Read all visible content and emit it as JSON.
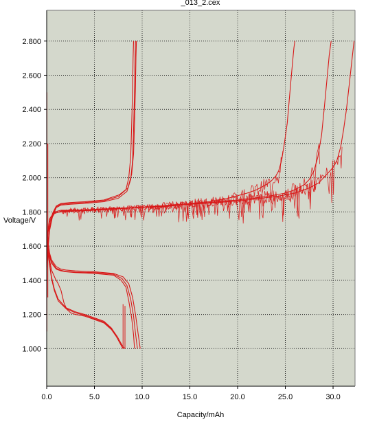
{
  "chart_data": {
    "type": "line",
    "title": "_013_2.cex",
    "xlabel": "Capacity/mAh",
    "ylabel": "Voltage/V",
    "xlim": [
      0,
      32.3
    ],
    "ylim": [
      0.78,
      2.98
    ],
    "xticks": [
      "0.0",
      "5.0",
      "10.0",
      "15.0",
      "20.0",
      "25.0",
      "30.0"
    ],
    "yticks": [
      "1.000",
      "1.200",
      "1.400",
      "1.600",
      "1.800",
      "2.000",
      "2.200",
      "2.400",
      "2.600",
      "2.800"
    ],
    "grid": true,
    "background": "#d4d8cc",
    "line_color": "#d81818",
    "series": [
      {
        "x": [
          0,
          0.1,
          0.3,
          0.6,
          1.0,
          1.5,
          2.5,
          4.0,
          6.0,
          7.5,
          8.3,
          8.6,
          8.8,
          8.9,
          9.0,
          9.05,
          9.1
        ],
        "y": [
          1.48,
          1.58,
          1.7,
          1.78,
          1.83,
          1.845,
          1.85,
          1.855,
          1.865,
          1.89,
          1.93,
          2.0,
          2.12,
          2.3,
          2.52,
          2.7,
          2.8
        ]
      },
      {
        "x": [
          0,
          0.1,
          0.3,
          0.6,
          1.0,
          1.5,
          2.5,
          4.0,
          6.0,
          7.5,
          8.4,
          8.8,
          9.0,
          9.1,
          9.2,
          9.25,
          9.3
        ],
        "y": [
          1.46,
          1.56,
          1.69,
          1.77,
          1.825,
          1.84,
          1.845,
          1.85,
          1.86,
          1.88,
          1.92,
          1.99,
          2.1,
          2.28,
          2.5,
          2.68,
          2.8
        ]
      },
      {
        "x": [
          0,
          0.1,
          0.3,
          0.6,
          1.0,
          1.5,
          2.5,
          4.0,
          6.0,
          7.6,
          8.5,
          8.9,
          9.1,
          9.2,
          9.3,
          9.35,
          9.4
        ],
        "y": [
          1.5,
          1.6,
          1.71,
          1.79,
          1.835,
          1.85,
          1.855,
          1.86,
          1.87,
          1.9,
          1.94,
          2.02,
          2.14,
          2.32,
          2.54,
          2.71,
          2.8
        ]
      },
      {
        "x": [
          0,
          0.05,
          0.15,
          0.3,
          0.5,
          1.0,
          1.5,
          2.0,
          3.0,
          5.0,
          7.0,
          8.0,
          8.6,
          9.0,
          9.3,
          9.6,
          9.8
        ],
        "y": [
          1.73,
          1.68,
          1.62,
          1.56,
          1.52,
          1.48,
          1.465,
          1.46,
          1.455,
          1.45,
          1.44,
          1.42,
          1.38,
          1.3,
          1.2,
          1.08,
          1.0
        ]
      },
      {
        "x": [
          0,
          0.05,
          0.15,
          0.3,
          0.5,
          1.0,
          1.5,
          2.0,
          3.0,
          5.0,
          7.0,
          7.9,
          8.4,
          8.8,
          9.1,
          9.3,
          9.5
        ],
        "y": [
          1.72,
          1.67,
          1.61,
          1.55,
          1.51,
          1.47,
          1.458,
          1.452,
          1.448,
          1.445,
          1.435,
          1.41,
          1.37,
          1.29,
          1.19,
          1.09,
          1.0
        ]
      },
      {
        "x": [
          0,
          0.05,
          0.15,
          0.3,
          0.5,
          1.0,
          1.5,
          2.0,
          3.0,
          5.0,
          7.0,
          7.8,
          8.3,
          8.6,
          8.9,
          9.1,
          9.2
        ],
        "y": [
          1.71,
          1.66,
          1.6,
          1.54,
          1.5,
          1.465,
          1.455,
          1.45,
          1.445,
          1.44,
          1.43,
          1.4,
          1.36,
          1.28,
          1.18,
          1.08,
          1.0
        ]
      },
      {
        "x": [
          0,
          0.1,
          0.3,
          0.5,
          0.8,
          1.2,
          2.0,
          3.0,
          4.0,
          5.0,
          6.0,
          6.8,
          7.2,
          7.5,
          7.7,
          7.9,
          8.0
        ],
        "y": [
          1.65,
          1.58,
          1.5,
          1.42,
          1.35,
          1.29,
          1.24,
          1.215,
          1.2,
          1.18,
          1.16,
          1.12,
          1.08,
          1.05,
          1.03,
          1.01,
          1.0
        ]
      },
      {
        "x": [
          0,
          0.1,
          0.3,
          0.5,
          0.8,
          1.2,
          2.0,
          3.0,
          4.0,
          5.0,
          6.0,
          6.9,
          7.4,
          7.7,
          7.9,
          8.1,
          8.2
        ],
        "y": [
          1.64,
          1.57,
          1.49,
          1.41,
          1.34,
          1.28,
          1.235,
          1.21,
          1.195,
          1.175,
          1.155,
          1.11,
          1.07,
          1.04,
          1.02,
          1.005,
          1.0
        ]
      },
      {
        "x": [
          0,
          0.2,
          0.5,
          0.9,
          1.2,
          1.5,
          1.8,
          2.1,
          2.5,
          3.0,
          4.0,
          5.0,
          6.0,
          6.8,
          7.3,
          7.6,
          7.8,
          8.0
        ],
        "y": [
          1.66,
          1.55,
          1.46,
          1.41,
          1.38,
          1.34,
          1.27,
          1.23,
          1.21,
          1.2,
          1.19,
          1.17,
          1.15,
          1.11,
          1.07,
          1.04,
          1.02,
          1.0
        ]
      },
      {
        "x": [
          0,
          0.3,
          0.8,
          1.5,
          3.0,
          5.0,
          7.0,
          9.0,
          11.0,
          13.0,
          15.0,
          17.0,
          19.0,
          21.0,
          22.0,
          23.0,
          23.5,
          24.0,
          24.3,
          24.6,
          24.9,
          25.2,
          25.4,
          25.6,
          25.8,
          25.9,
          26.0
        ],
        "y": [
          1.62,
          1.74,
          1.79,
          1.805,
          1.81,
          1.815,
          1.82,
          1.825,
          1.83,
          1.84,
          1.85,
          1.86,
          1.88,
          1.91,
          1.93,
          1.96,
          1.98,
          2.01,
          2.04,
          2.1,
          2.2,
          2.32,
          2.45,
          2.58,
          2.7,
          2.76,
          2.8
        ]
      },
      {
        "x": [
          0,
          0.3,
          0.8,
          1.5,
          3.0,
          5.0,
          8.0,
          11.0,
          14.0,
          17.0,
          20.0,
          23.0,
          25.0,
          26.0,
          27.0,
          27.5,
          28.0,
          28.4,
          28.8,
          29.1,
          29.4,
          29.6,
          29.8
        ],
        "y": [
          1.63,
          1.75,
          1.795,
          1.8,
          1.805,
          1.81,
          1.82,
          1.83,
          1.84,
          1.855,
          1.87,
          1.89,
          1.91,
          1.93,
          1.96,
          1.99,
          2.04,
          2.12,
          2.25,
          2.42,
          2.6,
          2.72,
          2.8
        ]
      },
      {
        "x": [
          0,
          0.3,
          0.8,
          1.5,
          3.0,
          6.0,
          9.0,
          12.0,
          15.0,
          18.0,
          21.0,
          24.0,
          26.0,
          27.5,
          28.5,
          29.0,
          29.5,
          30.0,
          30.4,
          30.8,
          31.1,
          31.4,
          31.7,
          32.0,
          32.2
        ],
        "y": [
          1.64,
          1.76,
          1.8,
          1.81,
          1.81,
          1.815,
          1.825,
          1.83,
          1.845,
          1.855,
          1.87,
          1.89,
          1.91,
          1.94,
          1.97,
          2.0,
          2.03,
          2.06,
          2.1,
          2.18,
          2.28,
          2.4,
          2.55,
          2.7,
          2.8
        ]
      }
    ]
  }
}
